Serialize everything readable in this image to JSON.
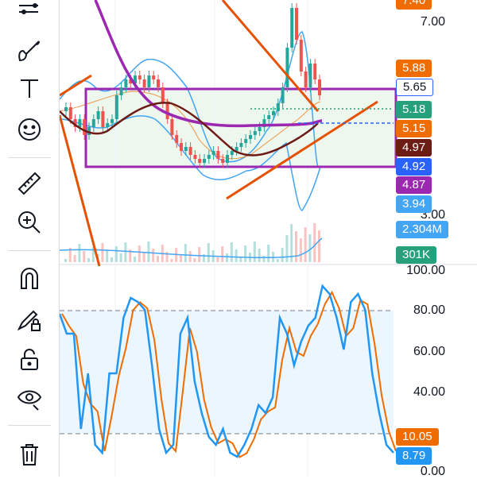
{
  "toolbar": {
    "items": [
      {
        "icon": "pattern-lines-icon"
      },
      {
        "icon": "brush-icon"
      },
      {
        "icon": "text-icon"
      },
      {
        "icon": "emoji-icon"
      },
      {
        "icon": "ruler-icon"
      },
      {
        "icon": "zoom-in-icon"
      },
      {
        "icon": "magnet-icon"
      },
      {
        "icon": "lock-drawing-icon"
      },
      {
        "icon": "unlock-icon"
      },
      {
        "icon": "eye-visibility-icon"
      },
      {
        "icon": "trash-icon"
      }
    ]
  },
  "price_axis": {
    "labels": [
      "7.00",
      "3.00"
    ],
    "tags": [
      {
        "text": "7.40",
        "color": "#ef6c00"
      },
      {
        "text": "5.88",
        "color": "#ef6c00"
      },
      {
        "text": "5.65",
        "color": "#ffffff",
        "text_color": "#131722",
        "border": "#2962ff"
      },
      {
        "text": "5.18",
        "color": "#26a17b"
      },
      {
        "text": "5.15",
        "color": "#ef6c00"
      },
      {
        "text": "4.97",
        "color": "#6d1b15"
      },
      {
        "text": "4.92",
        "color": "#2962ff"
      },
      {
        "text": "4.87",
        "color": "#9c27b0"
      },
      {
        "text": "3.94",
        "color": "#42a5f5"
      },
      {
        "text": "2.304M",
        "color": "#42a5f5"
      },
      {
        "text": "301K",
        "color": "#26a17b"
      }
    ]
  },
  "oscillator_axis": {
    "labels": [
      "100.00",
      "80.00",
      "60.00",
      "40.00",
      "0.00"
    ],
    "tags": [
      {
        "text": "10.05",
        "color": "#ef6c00"
      },
      {
        "text": "8.79",
        "color": "#2196f3"
      }
    ]
  },
  "colors": {
    "bull": "#26a69a",
    "bear": "#ef5350",
    "bollinger": "#42a5f5",
    "ma_purple": "#9c27b0",
    "ma_brown": "#6d1b15",
    "trend_orange": "#e65100",
    "range_box": "#9c27b0",
    "range_fill": "#e8f5e9",
    "stoch_k": "#2196f3",
    "stoch_d": "#ef6c00"
  }
}
